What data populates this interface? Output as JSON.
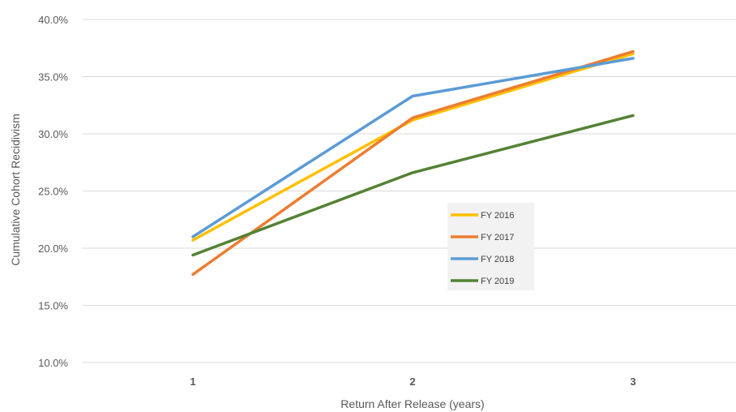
{
  "chart_data": {
    "type": "line",
    "title": "",
    "xlabel": "Return After Release (years)",
    "ylabel": "Cumulative Cohort Recidivism",
    "categories": [
      "1",
      "2",
      "3"
    ],
    "ylim": [
      10,
      40
    ],
    "yticks": [
      "10.0%",
      "15.0%",
      "20.0%",
      "25.0%",
      "30.0%",
      "35.0%",
      "40.0%"
    ],
    "ytick_values": [
      10,
      15,
      20,
      25,
      30,
      35,
      40
    ],
    "grid": true,
    "legend_position": "center-right",
    "series": [
      {
        "name": "FY 2016",
        "color": "#FFC000",
        "values": [
          20.7,
          31.2,
          37.0
        ]
      },
      {
        "name": "FY 2017",
        "color": "#ED7D31",
        "values": [
          17.7,
          31.4,
          37.2
        ]
      },
      {
        "name": "FY 2018",
        "color": "#5B9BD5",
        "values": [
          21.0,
          33.3,
          36.6
        ]
      },
      {
        "name": "FY 2019",
        "color": "#548235",
        "values": [
          19.4,
          26.6,
          31.6
        ]
      }
    ]
  }
}
